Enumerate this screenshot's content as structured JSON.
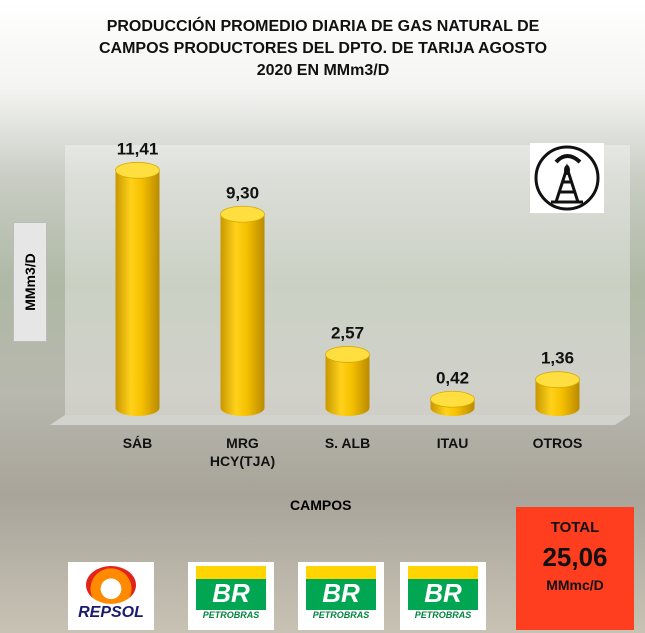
{
  "chart_data": {
    "type": "bar",
    "title": "PRODUCCIÓN PROMEDIO DIARIA DE GAS NATURAL DE CAMPOS PRODUCTORES DEL DPTO. DE TARIJA AGOSTO 2020 EN MMm3/D",
    "y_label": "MMm3/D",
    "x_label": "CAMPOS",
    "categories": [
      "SÁB",
      "MRG HCY(TJA)",
      "S. ALB",
      "ITAU",
      "OTROS"
    ],
    "values": [
      11.41,
      9.3,
      2.57,
      0.42,
      1.36
    ],
    "value_labels": [
      "11,41",
      "9,30",
      "2,57",
      "0,42",
      "1,36"
    ],
    "color": "#f2c200",
    "ylim": [
      0,
      12
    ]
  },
  "total": {
    "label": "TOTAL",
    "value": "25,06",
    "unit": "MMmc/D"
  },
  "logos": [
    {
      "text": "REPSOL"
    },
    {
      "mark": "BR",
      "text": "PETROBRAS"
    },
    {
      "mark": "BR",
      "text": "PETROBRAS"
    },
    {
      "mark": "BR",
      "text": "PETROBRAS"
    }
  ]
}
